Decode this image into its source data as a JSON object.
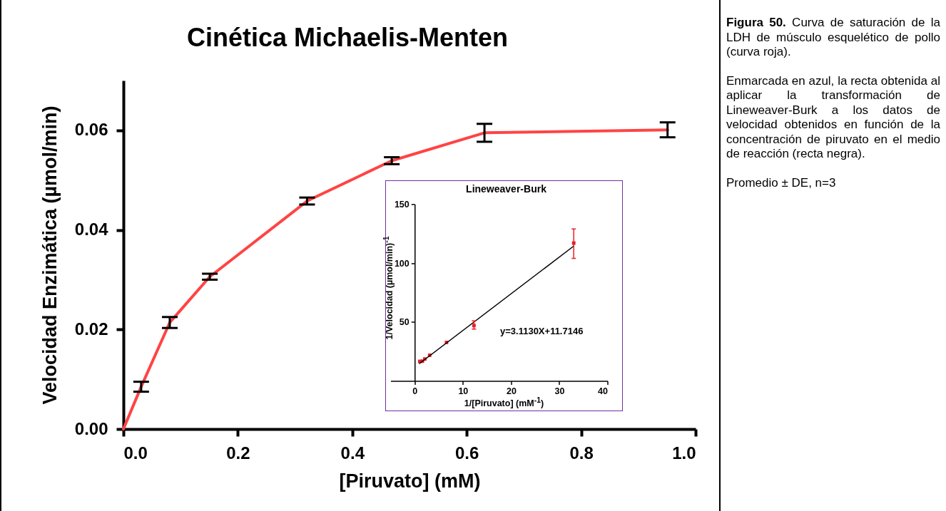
{
  "chart_data": [
    {
      "type": "line",
      "title": "Cinética Michaelis-Menten",
      "xlabel": "[Piruvato] (mM)",
      "ylabel": "Velocidad Enzimática (µmol/min)",
      "xlim": [
        0,
        1
      ],
      "ylim": [
        0,
        0.07
      ],
      "xticks": [
        {
          "value": 0,
          "label": "0.0"
        },
        {
          "value": 0.2,
          "label": "0.2"
        },
        {
          "value": 0.4,
          "label": "0.4"
        },
        {
          "value": 0.6,
          "label": "0.6"
        },
        {
          "value": 0.8,
          "label": "0.8"
        },
        {
          "value": 1,
          "label": "1.0"
        }
      ],
      "yticks": [
        {
          "value": 0,
          "label": "0.00"
        },
        {
          "value": 0.02,
          "label": "0.02"
        },
        {
          "value": 0.04,
          "label": "0.04"
        },
        {
          "value": 0.06,
          "label": "0.06"
        }
      ],
      "series": [
        {
          "color": "#ff4444",
          "x": [
            0,
            0.031,
            0.081,
            0.151,
            0.321,
            0.469,
            0.631,
            0.951
          ],
          "values": [
            0,
            0.0085,
            0.0214,
            0.0306,
            0.0458,
            0.0539,
            0.0595,
            0.0601
          ],
          "errors": [
            null,
            0.001,
            0.0011,
            0.0006,
            0.0007,
            0.0007,
            0.0018,
            0.0015
          ]
        }
      ]
    },
    {
      "type": "scatter",
      "title": "Lineweaver-Burk",
      "xlabel": "1/[Piruvato] (mM$^{-1}$)",
      "ylabel": "1/Velocidad (µmol/min)$^{-1}$",
      "xlim": [
        -5,
        40
      ],
      "ylim": [
        0,
        150
      ],
      "xticks": [
        0,
        10,
        20,
        30,
        40
      ],
      "yticks": [
        50,
        100,
        150
      ],
      "annotations": [
        "y=3.1130X+11.7146"
      ],
      "series": [
        {
          "type": "scatter",
          "color": "#e8202a",
          "marker": "square",
          "x": [
            1.05,
            1.6,
            2.1,
            3.1,
            6.6,
            12.3,
            33
          ],
          "values": [
            16.6,
            16.8,
            18.6,
            21.8,
            32.7,
            47,
            117
          ],
          "errors": [
            null,
            null,
            null,
            null,
            null,
            [
              44,
              51
            ],
            [
              104,
              129
            ]
          ]
        },
        {
          "type": "line",
          "color": "#000000",
          "x": [
            1,
            33
          ],
          "values": [
            14.83,
            114.45
          ]
        }
      ]
    },
    {
      "type": "other",
      "annotations": [
        "Figura 50.",
        "Curva de saturación de la LDH de músculo esquelético de pollo (curva roja).",
        "Enmarcada en azul, la recta obtenida al aplicar la transformación de Lineweaver-Burk a los datos de velocidad obtenidos en función de la concentración de piruvato en el medio de reacción (recta negra).",
        "Promedio ± DE, n=3"
      ]
    }
  ]
}
